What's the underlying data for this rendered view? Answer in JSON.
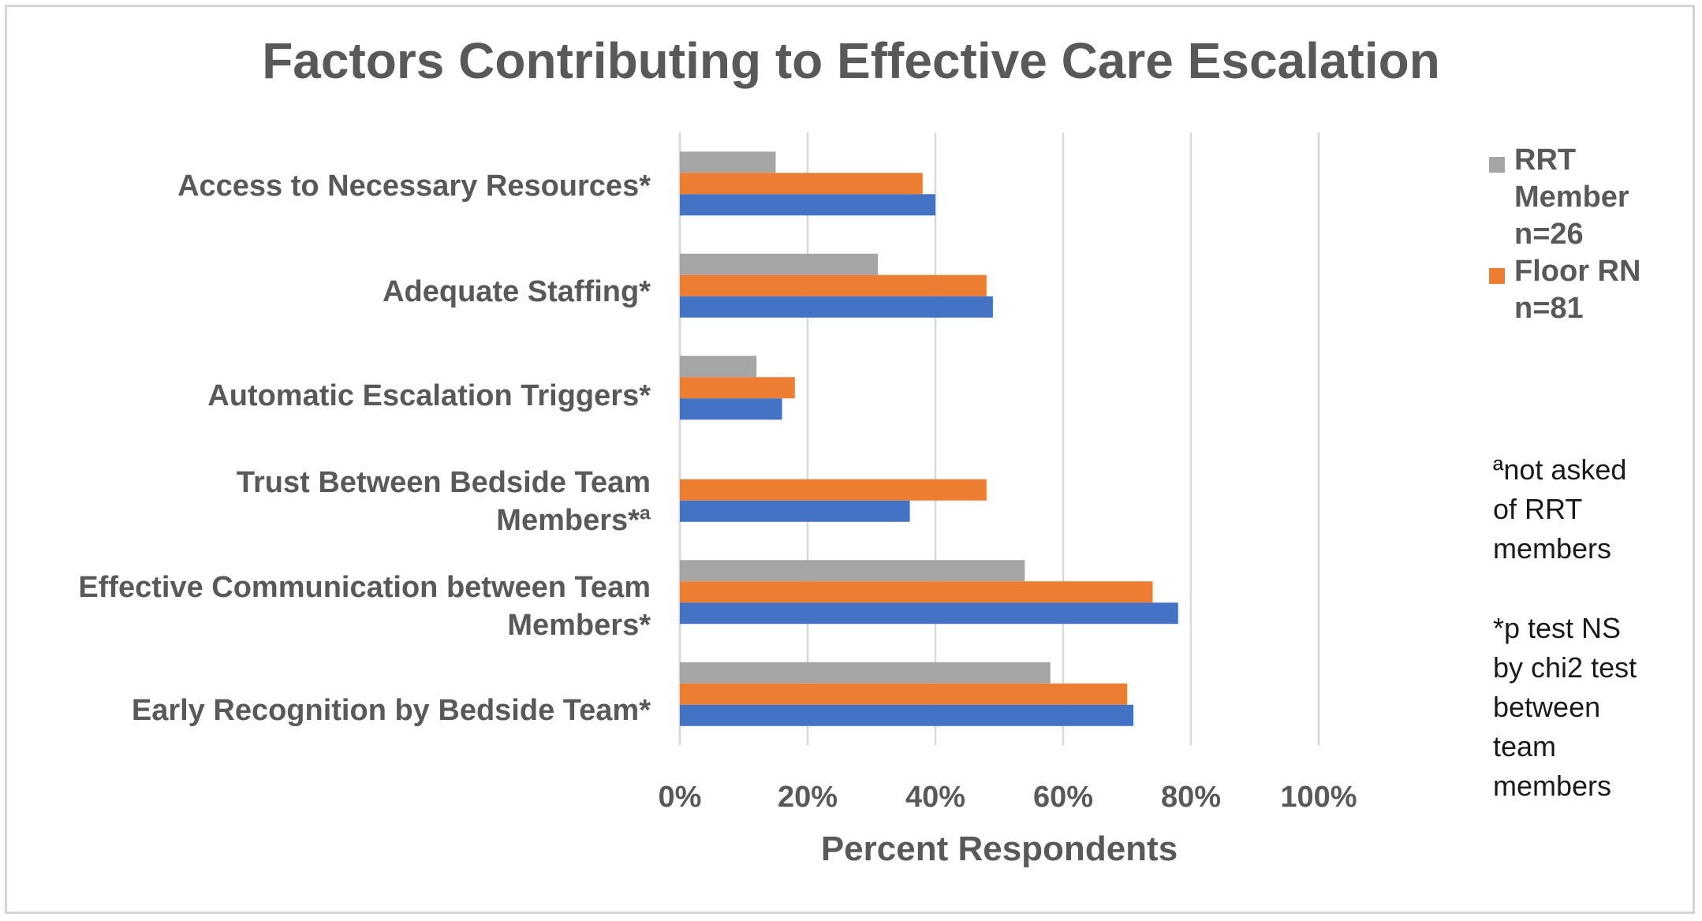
{
  "chart_data": {
    "type": "bar",
    "orientation": "horizontal",
    "title": "Factors Contributing to Effective Care Escalation",
    "xlabel": "Percent Respondents",
    "ylabel": "",
    "xlim": [
      0,
      100
    ],
    "x_ticks": [
      "0%",
      "20%",
      "40%",
      "60%",
      "80%",
      "100%"
    ],
    "grid": "vertical",
    "legend_position": "right",
    "categories": [
      "Access to Necessary Resources*",
      "Adequate Staffing*",
      "Automatic Escalation Triggers*",
      "Trust Between Bedside Team Members*ª",
      "Effective Communication between Team Members*",
      "Early Recognition by Bedside Team*"
    ],
    "series": [
      {
        "name": "RRT Member n=26",
        "color": "#a5a5a5",
        "values": [
          15,
          31,
          12,
          null,
          54,
          58
        ]
      },
      {
        "name": "Floor RN n=81",
        "color": "#ed7d31",
        "values": [
          38,
          48,
          18,
          48,
          74,
          70
        ]
      },
      {
        "name": "",
        "color": "#4472c4",
        "values": [
          40,
          49,
          16,
          36,
          78,
          71
        ]
      }
    ],
    "legend": [
      {
        "lines": [
          "RRT",
          "Member",
          "n=26"
        ],
        "color": "#a5a5a5"
      },
      {
        "lines": [
          "Floor RN",
          "n=81"
        ],
        "color": "#ed7d31"
      }
    ],
    "annotations": [
      [
        "ªnot asked",
        "of RRT",
        "members"
      ],
      [
        "*p test NS",
        "by chi2 test",
        "between",
        "team",
        "members"
      ]
    ]
  },
  "colors": {
    "text": "#595959",
    "grid": "#d9d9d9"
  }
}
